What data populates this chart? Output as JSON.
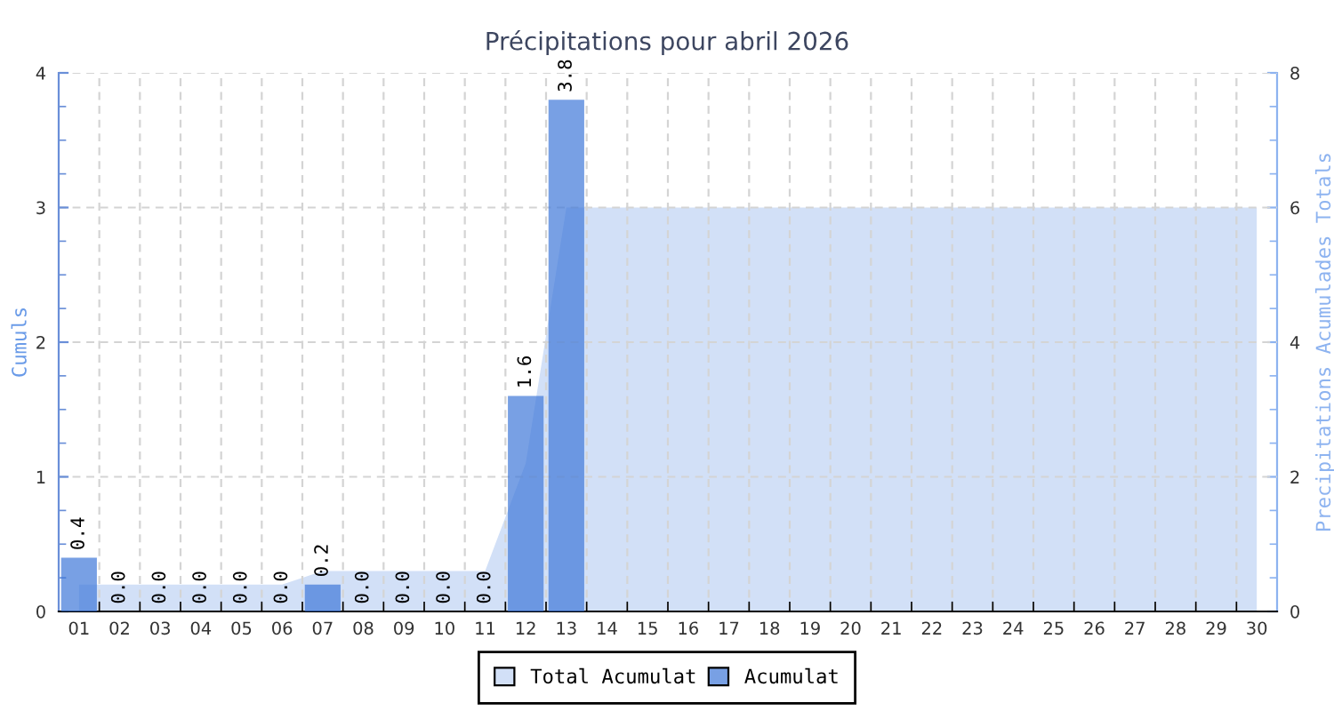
{
  "chart_data": {
    "type": "bar",
    "title": "Précipitations pour abril 2026",
    "ylabel": "Cumuls",
    "y2label": "Precipitations Acumulades Totals",
    "categories": [
      "01",
      "02",
      "03",
      "04",
      "05",
      "06",
      "07",
      "08",
      "09",
      "10",
      "11",
      "12",
      "13",
      "14",
      "15",
      "16",
      "17",
      "18",
      "19",
      "20",
      "21",
      "22",
      "23",
      "24",
      "25",
      "26",
      "27",
      "28",
      "29",
      "30"
    ],
    "series": [
      {
        "name": "Total Acumulat",
        "type": "area",
        "axis": "y2",
        "color": "#d2e0f7",
        "values": [
          0.4,
          0.4,
          0.4,
          0.4,
          0.4,
          0.4,
          0.6,
          0.6,
          0.6,
          0.6,
          0.6,
          2.2,
          6.0,
          6.0,
          6.0,
          6.0,
          6.0,
          6.0,
          6.0,
          6.0,
          6.0,
          6.0,
          6.0,
          6.0,
          6.0,
          6.0,
          6.0,
          6.0,
          6.0,
          6.0
        ]
      },
      {
        "name": "Acumulat",
        "color": "#78a0e4",
        "values": [
          0.4,
          0.0,
          0.0,
          0.0,
          0.0,
          0.0,
          0.2,
          0.0,
          0.0,
          0.0,
          0.0,
          1.6,
          3.8,
          null,
          null,
          null,
          null,
          null,
          null,
          null,
          null,
          null,
          null,
          null,
          null,
          null,
          null,
          null,
          null,
          null
        ],
        "value_labels": [
          "0.4",
          "0.0",
          "0.0",
          "0.0",
          "0.0",
          "0.0",
          "0.2",
          "0.0",
          "0.0",
          "0.0",
          "0.0",
          "1.6",
          "3.8",
          null,
          null,
          null,
          null,
          null,
          null,
          null,
          null,
          null,
          null,
          null,
          null,
          null,
          null,
          null,
          null,
          null
        ]
      }
    ],
    "ylim": [
      0,
      4
    ],
    "yticks": [
      0,
      1,
      2,
      3,
      4
    ],
    "y2lim": [
      0,
      8
    ],
    "y2ticks": [
      0,
      2,
      4,
      6,
      8
    ],
    "grid": true,
    "legend": "bottom"
  }
}
